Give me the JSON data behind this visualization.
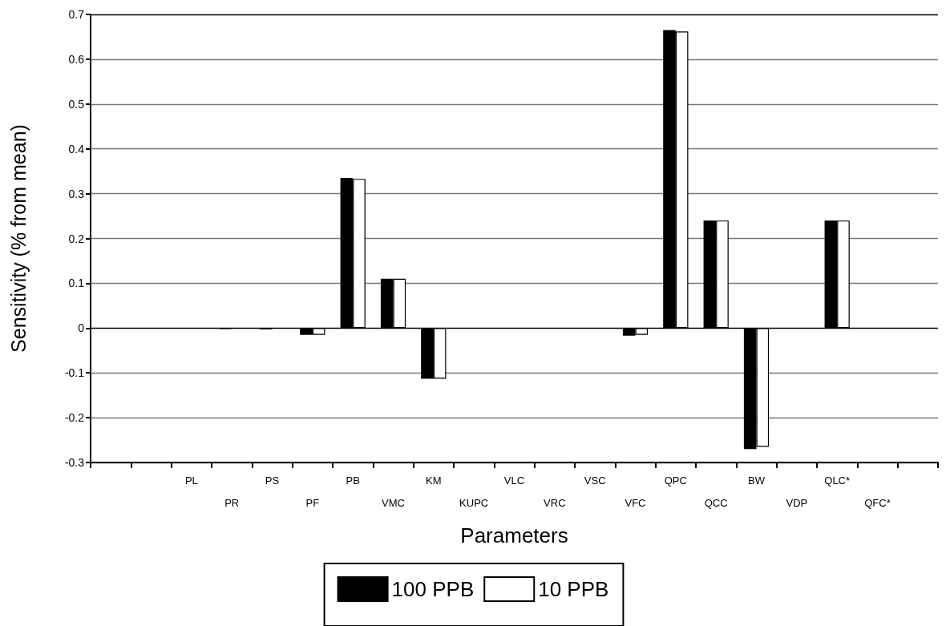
{
  "chart_data": {
    "type": "bar",
    "xlabel": "Parameters",
    "ylabel": "Sensitivity (% from mean)",
    "categories": [
      null,
      null,
      "PL",
      "PR",
      "PS",
      "PF",
      "PB",
      "VMC",
      "KM",
      "KUPC",
      "VLC",
      "VRC",
      "VSC",
      "VFC",
      "QPC",
      "QCC",
      "BW",
      "VDP",
      "QLC*",
      "QFC*",
      null
    ],
    "series": [
      {
        "name": "100 PPB",
        "color": "#000000",
        "values": [
          null,
          null,
          0,
          -0.002,
          -0.003,
          -0.015,
          0.335,
          0.11,
          -0.113,
          0,
          0,
          0,
          0,
          -0.017,
          0.665,
          0.24,
          -0.27,
          0,
          0.24,
          0,
          null
        ]
      },
      {
        "name": "10 PPB",
        "color": "#ffffff",
        "values": [
          null,
          null,
          0,
          0,
          null,
          -0.015,
          0.333,
          0.11,
          -0.113,
          0,
          0,
          0,
          0,
          -0.015,
          0.662,
          0.24,
          -0.265,
          0,
          0.24,
          0,
          null
        ]
      }
    ],
    "ylim": [
      -0.3,
      0.7
    ],
    "yticks": [
      -0.3,
      -0.2,
      -0.1,
      0,
      0.1,
      0.2,
      0.3,
      0.4,
      0.5,
      0.6,
      0.7
    ],
    "grid": "y",
    "legend": "bottom"
  }
}
